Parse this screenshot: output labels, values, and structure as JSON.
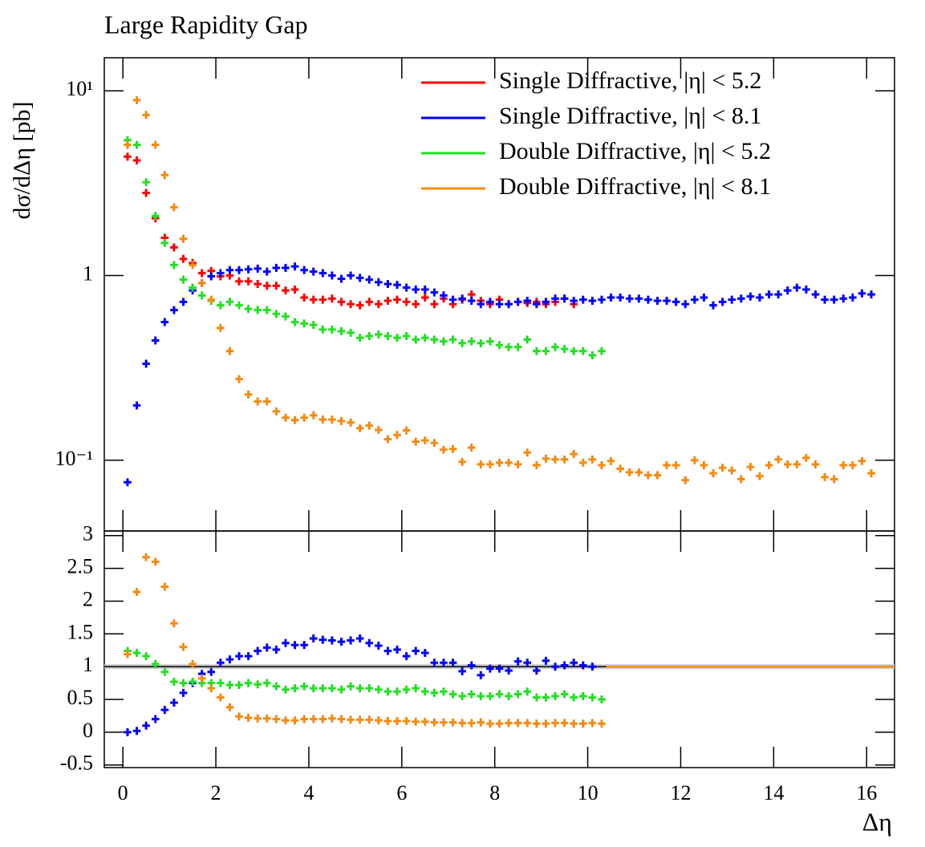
{
  "chart_data": [
    {
      "type": "errorbar",
      "title": "Large Rapidity Gap",
      "ylabel": "dσ/dΔη [pb]",
      "log_y": true,
      "legend": "upper right",
      "x": [
        0.1,
        0.3,
        0.5,
        0.7,
        0.9,
        1.1,
        1.3,
        1.5,
        1.7,
        1.9,
        2.1,
        2.3,
        2.5,
        2.7,
        2.9,
        3.1,
        3.3,
        3.5,
        3.7,
        3.9,
        4.1,
        4.3,
        4.5,
        4.7,
        4.9,
        5.1,
        5.3,
        5.5,
        5.7,
        5.9,
        6.1,
        6.3,
        6.5,
        6.7,
        6.9,
        7.1,
        7.3,
        7.5,
        7.7,
        7.9,
        8.1,
        8.3,
        8.5,
        8.7,
        8.9,
        9.1,
        9.3,
        9.5,
        9.7,
        9.9,
        10.1,
        10.3,
        10.5,
        10.7,
        10.9,
        11.1,
        11.3,
        11.5,
        11.7,
        11.9,
        12.1,
        12.3,
        12.5,
        12.7,
        12.9,
        13.1,
        13.3,
        13.5,
        13.7,
        13.9,
        14.1,
        14.3,
        14.5,
        14.7,
        14.9,
        15.1,
        15.3,
        15.5,
        15.7,
        15.9,
        16.1
      ],
      "series": [
        {
          "name": "Single Diffractive, |η| < 5.2",
          "color": "#ff0000",
          "values": [
            4.4,
            4.2,
            2.8,
            2.04,
            1.6,
            1.42,
            1.23,
            1.17,
            1.03,
            1.06,
            0.99,
            1.0,
            0.93,
            0.93,
            0.9,
            0.88,
            0.88,
            0.83,
            0.84,
            0.76,
            0.74,
            0.74,
            0.75,
            0.72,
            0.7,
            0.69,
            0.72,
            0.7,
            0.73,
            0.74,
            0.72,
            0.7,
            0.76,
            0.7,
            0.75,
            0.7,
            0.74,
            0.79,
            0.73,
            0.7,
            0.74,
            0.7,
            0.72,
            0.71,
            0.72,
            0.7,
            0.72,
            0.75,
            0.7,
            null,
            null,
            null,
            null,
            null,
            null,
            null,
            null,
            null,
            null,
            null,
            null,
            null,
            null,
            null,
            null,
            null,
            null,
            null,
            null,
            null,
            null,
            null,
            null,
            null,
            null,
            null,
            null,
            null,
            null,
            null,
            null
          ]
        },
        {
          "name": "Single Diffractive, |η| < 8.1",
          "color": "#0000ff",
          "values": [
            0.076,
            0.198,
            0.333,
            0.445,
            0.56,
            0.65,
            0.72,
            0.83,
            0.91,
            0.99,
            1.03,
            1.07,
            1.07,
            1.08,
            1.09,
            1.05,
            1.1,
            1.1,
            1.12,
            1.07,
            1.05,
            1.03,
            1.0,
            0.96,
            1.0,
            0.97,
            0.95,
            0.92,
            0.9,
            0.89,
            0.86,
            0.84,
            0.84,
            0.81,
            0.78,
            0.74,
            0.75,
            0.73,
            0.7,
            0.72,
            0.7,
            0.7,
            0.72,
            0.73,
            0.7,
            0.72,
            0.75,
            0.75,
            0.73,
            0.74,
            0.73,
            0.74,
            0.76,
            0.76,
            0.75,
            0.75,
            0.74,
            0.73,
            0.73,
            0.72,
            0.7,
            0.74,
            0.76,
            0.69,
            0.72,
            0.74,
            0.75,
            0.77,
            0.76,
            0.79,
            0.79,
            0.83,
            0.86,
            0.84,
            0.79,
            0.74,
            0.74,
            0.75,
            0.76,
            0.8,
            0.79
          ]
        },
        {
          "name": "Double Diffractive, |η| < 5.2",
          "color": "#22e022",
          "values": [
            5.4,
            5.1,
            3.2,
            2.1,
            1.5,
            1.14,
            0.95,
            0.86,
            0.78,
            0.73,
            0.69,
            0.72,
            0.69,
            0.66,
            0.65,
            0.65,
            0.62,
            0.6,
            0.56,
            0.55,
            0.54,
            0.51,
            0.51,
            0.5,
            0.49,
            0.46,
            0.47,
            0.48,
            0.47,
            0.46,
            0.47,
            0.45,
            0.46,
            0.45,
            0.44,
            0.45,
            0.43,
            0.44,
            0.43,
            0.44,
            0.42,
            0.41,
            0.41,
            0.45,
            0.39,
            0.39,
            0.41,
            0.4,
            0.39,
            0.39,
            0.37,
            0.39,
            null,
            null,
            null,
            null,
            null,
            null,
            null,
            null,
            null,
            null,
            null,
            null,
            null,
            null,
            null,
            null,
            null,
            null,
            null,
            null,
            null,
            null,
            null,
            null,
            null,
            null,
            null,
            null,
            null
          ]
        },
        {
          "name": "Double Diffractive, |η| < 8.1",
          "color": "#f58a12",
          "values": [
            5.1,
            8.9,
            7.4,
            5.1,
            3.5,
            2.34,
            1.58,
            1.14,
            0.91,
            0.74,
            0.52,
            0.39,
            0.275,
            0.227,
            0.208,
            0.208,
            0.184,
            0.17,
            0.165,
            0.17,
            0.175,
            0.166,
            0.166,
            0.163,
            0.16,
            0.149,
            0.154,
            0.146,
            0.13,
            0.137,
            0.145,
            0.126,
            0.128,
            0.124,
            0.114,
            0.115,
            0.098,
            0.117,
            0.095,
            0.095,
            0.097,
            0.097,
            0.095,
            0.11,
            0.094,
            0.102,
            0.101,
            0.101,
            0.108,
            0.097,
            0.101,
            0.094,
            0.099,
            0.09,
            0.086,
            0.086,
            0.083,
            0.083,
            0.094,
            0.094,
            0.078,
            0.1,
            0.094,
            0.085,
            0.091,
            0.088,
            0.079,
            0.092,
            0.082,
            0.094,
            0.101,
            0.095,
            0.095,
            0.103,
            0.095,
            0.081,
            0.079,
            0.094,
            0.094,
            0.099,
            0.085
          ]
        }
      ],
      "xlim": [
        -0.4,
        16.6
      ],
      "xticks": [
        0,
        2,
        4,
        6,
        8,
        10,
        12,
        14,
        16
      ],
      "ylim": [
        0.0414,
        15.1
      ],
      "yticks": [
        {
          "value": 10,
          "label": "10¹"
        },
        1,
        {
          "value": 0.1,
          "label": "10⁻¹"
        }
      ]
    },
    {
      "type": "errorbar",
      "xlabel": "Δη",
      "hline": 1,
      "x": [
        0.1,
        0.3,
        0.5,
        0.7,
        0.9,
        1.1,
        1.3,
        1.5,
        1.7,
        1.9,
        2.1,
        2.3,
        2.5,
        2.7,
        2.9,
        3.1,
        3.3,
        3.5,
        3.7,
        3.9,
        4.1,
        4.3,
        4.5,
        4.7,
        4.9,
        5.1,
        5.3,
        5.5,
        5.7,
        5.9,
        6.1,
        6.3,
        6.5,
        6.7,
        6.9,
        7.1,
        7.3,
        7.5,
        7.7,
        7.9,
        8.1,
        8.3,
        8.5,
        8.7,
        8.9,
        9.1,
        9.3,
        9.5,
        9.7,
        9.9,
        10.1,
        10.3
      ],
      "series": [
        {
          "color": "#0000ff",
          "values": [
            0.0,
            0.02,
            0.1,
            0.2,
            0.34,
            0.45,
            0.6,
            0.75,
            0.89,
            0.92,
            1.06,
            1.11,
            1.16,
            1.16,
            1.24,
            1.29,
            1.26,
            1.36,
            1.33,
            1.33,
            1.43,
            1.41,
            1.4,
            1.38,
            1.4,
            1.43,
            1.36,
            1.32,
            1.24,
            1.26,
            1.16,
            1.24,
            1.21,
            1.06,
            1.06,
            1.06,
            0.93,
            1.02,
            0.87,
            0.97,
            0.97,
            0.94,
            1.08,
            1.06,
            0.94,
            1.09,
            1.0,
            1.02,
            1.06,
            1.02,
            1.0,
            null
          ]
        },
        {
          "color": "#22e022",
          "values": [
            1.24,
            1.21,
            1.16,
            1.04,
            0.92,
            0.77,
            0.75,
            0.77,
            0.75,
            0.75,
            0.75,
            0.72,
            0.72,
            0.75,
            0.73,
            0.75,
            0.7,
            0.65,
            0.67,
            0.7,
            0.67,
            0.67,
            0.67,
            0.65,
            0.7,
            0.67,
            0.67,
            0.65,
            0.62,
            0.62,
            0.65,
            0.67,
            0.62,
            0.6,
            0.62,
            0.58,
            0.55,
            0.58,
            0.55,
            0.55,
            0.58,
            0.55,
            0.58,
            0.62,
            0.53,
            0.53,
            0.55,
            0.58,
            0.53,
            0.55,
            0.53,
            0.5
          ]
        },
        {
          "color": "#f58a12",
          "values": [
            1.19,
            2.14,
            2.67,
            2.6,
            2.22,
            1.66,
            1.3,
            1.04,
            0.82,
            0.67,
            0.53,
            0.38,
            0.24,
            0.22,
            0.21,
            0.21,
            0.2,
            0.18,
            0.18,
            0.2,
            0.2,
            0.2,
            0.21,
            0.2,
            0.19,
            0.19,
            0.19,
            0.18,
            0.17,
            0.17,
            0.17,
            0.16,
            0.16,
            0.15,
            0.15,
            0.15,
            0.14,
            0.14,
            0.15,
            0.13,
            0.13,
            0.14,
            0.14,
            0.14,
            0.13,
            0.13,
            0.14,
            0.14,
            0.13,
            0.13,
            0.14,
            0.13
          ]
        }
      ],
      "xlim": [
        -0.4,
        16.6
      ],
      "xticks": [
        0,
        2,
        4,
        6,
        8,
        10,
        12,
        14,
        16
      ],
      "ylim": [
        -0.54,
        3.07
      ],
      "yticks": [
        -0.5,
        0,
        0.5,
        1,
        1.5,
        2,
        2.5,
        3
      ]
    }
  ]
}
